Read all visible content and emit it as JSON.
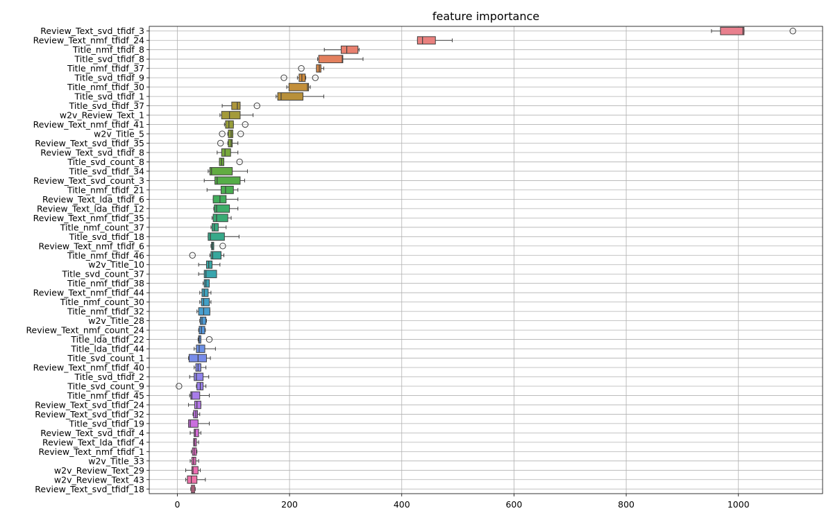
{
  "chart_data": {
    "type": "box",
    "title": "feature importance",
    "xlabel": "",
    "ylabel": "",
    "xlim": [
      -50,
      1150
    ],
    "xticks": [
      0,
      200,
      400,
      600,
      800,
      1000
    ],
    "xtick_labels": [
      "0",
      "200",
      "400",
      "600",
      "800",
      "1000"
    ],
    "grid": true,
    "orientation": "horizontal",
    "features": [
      {
        "name": "Review_Text_svd_tfidf_3",
        "min": 952,
        "q1": 968,
        "median": 1008,
        "q3": 1010,
        "max": 1010,
        "outliers": [
          1097
        ],
        "color": "#e8808e"
      },
      {
        "name": "Review_Text_nmf_tfidf_24",
        "min": 428,
        "q1": 428,
        "median": 437,
        "q3": 460,
        "max": 490,
        "outliers": [],
        "color": "#e8807e"
      },
      {
        "name": "Title_nmf_tfidf_8",
        "min": 262,
        "q1": 292,
        "median": 302,
        "q3": 322,
        "max": 324,
        "outliers": [],
        "color": "#e8806f"
      },
      {
        "name": "Title_svd_tfidf_8",
        "min": 250,
        "q1": 252,
        "median": 294,
        "q3": 295,
        "max": 331,
        "outliers": [],
        "color": "#e3805e"
      },
      {
        "name": "Title_nmf_tfidf_37",
        "min": 248,
        "q1": 248,
        "median": 253,
        "q3": 256,
        "max": 261,
        "outliers": [
          221
        ],
        "color": "#d98a4a"
      },
      {
        "name": "Title_svd_tfidf_9",
        "min": 214,
        "q1": 217,
        "median": 222,
        "q3": 228,
        "max": 229,
        "outliers": [
          190,
          246
        ],
        "color": "#cd8a3c"
      },
      {
        "name": "Title_nmf_tfidf_30",
        "min": 195,
        "q1": 199,
        "median": 232,
        "q3": 234,
        "max": 237,
        "outliers": [],
        "color": "#c38f3a"
      },
      {
        "name": "Title_svd_tfidf_1",
        "min": 176,
        "q1": 179,
        "median": 185,
        "q3": 224,
        "max": 261,
        "outliers": [],
        "color": "#b8903a"
      },
      {
        "name": "Title_svd_tfidf_37",
        "min": 80,
        "q1": 97,
        "median": 107,
        "q3": 112,
        "max": 112,
        "outliers": [
          142
        ],
        "color": "#ad963a"
      },
      {
        "name": "w2v_Review_Text_1",
        "min": 76,
        "q1": 79,
        "median": 93,
        "q3": 112,
        "max": 135,
        "outliers": [],
        "color": "#a39a3a"
      },
      {
        "name": "Review_Text_nmf_tfidf_41",
        "min": 84,
        "q1": 86,
        "median": 92,
        "q3": 100,
        "max": 100,
        "outliers": [
          121
        ],
        "color": "#989e3a"
      },
      {
        "name": "w2v_Title_5",
        "min": 90,
        "q1": 91,
        "median": 96,
        "q3": 99,
        "max": 99,
        "outliers": [
          80,
          113
        ],
        "color": "#8ea23a"
      },
      {
        "name": "Review_Text_svd_tfidf_35",
        "min": 90,
        "q1": 91,
        "median": 96,
        "q3": 98,
        "max": 108,
        "outliers": [
          77
        ],
        "color": "#83a63a"
      },
      {
        "name": "Review_Text_svd_tfidf_8",
        "min": 71,
        "q1": 79,
        "median": 85,
        "q3": 95,
        "max": 108,
        "outliers": [],
        "color": "#78a93c"
      },
      {
        "name": "Title_svd_count_8",
        "min": 75,
        "q1": 75,
        "median": 79,
        "q3": 83,
        "max": 83,
        "outliers": [
          111
        ],
        "color": "#6eab3e"
      },
      {
        "name": "Title_svd_tfidf_34",
        "min": 55,
        "q1": 58,
        "median": 61,
        "q3": 98,
        "max": 125,
        "outliers": [],
        "color": "#62ac42"
      },
      {
        "name": "Review_Text_svd_count_3",
        "min": 48,
        "q1": 67,
        "median": 71,
        "q3": 112,
        "max": 120,
        "outliers": [],
        "color": "#55ad48"
      },
      {
        "name": "Title_nmf_tfidf_21",
        "min": 53,
        "q1": 78,
        "median": 86,
        "q3": 100,
        "max": 108,
        "outliers": [],
        "color": "#4aae50"
      },
      {
        "name": "Review_Text_lda_tfidf_6",
        "min": 64,
        "q1": 64,
        "median": 76,
        "q3": 87,
        "max": 108,
        "outliers": [],
        "color": "#42ad5c"
      },
      {
        "name": "Review_Text_lda_tfidf_12",
        "min": 65,
        "q1": 66,
        "median": 70,
        "q3": 93,
        "max": 108,
        "outliers": [],
        "color": "#3dac68"
      },
      {
        "name": "Review_Text_nmf_tfidf_35",
        "min": 62,
        "q1": 64,
        "median": 70,
        "q3": 90,
        "max": 96,
        "outliers": [],
        "color": "#3aab74"
      },
      {
        "name": "Title_nmf_count_37",
        "min": 60,
        "q1": 62,
        "median": 66,
        "q3": 73,
        "max": 87,
        "outliers": [],
        "color": "#38aa80"
      },
      {
        "name": "Title_svd_tfidf_18",
        "min": 55,
        "q1": 55,
        "median": 59,
        "q3": 84,
        "max": 110,
        "outliers": [],
        "color": "#37a98a"
      },
      {
        "name": "Review_Text_nmf_tfidf_6",
        "min": 60,
        "q1": 61,
        "median": 63,
        "q3": 65,
        "max": 65,
        "outliers": [
          81
        ],
        "color": "#37a893"
      },
      {
        "name": "Title_nmf_tfidf_46",
        "min": 58,
        "q1": 60,
        "median": 63,
        "q3": 78,
        "max": 83,
        "outliers": [
          27
        ],
        "color": "#37a79c"
      },
      {
        "name": "w2v_Title_10",
        "min": 38,
        "q1": 52,
        "median": 56,
        "q3": 62,
        "max": 76,
        "outliers": [],
        "color": "#38a6a4"
      },
      {
        "name": "Title_svd_count_37",
        "min": 38,
        "q1": 48,
        "median": 51,
        "q3": 70,
        "max": 70,
        "outliers": [],
        "color": "#39a5ad"
      },
      {
        "name": "Title_nmf_tfidf_38",
        "min": 46,
        "q1": 48,
        "median": 51,
        "q3": 57,
        "max": 57,
        "outliers": [],
        "color": "#3ba3b5"
      },
      {
        "name": "Review_Text_nmf_tfidf_44",
        "min": 40,
        "q1": 44,
        "median": 48,
        "q3": 55,
        "max": 60,
        "outliers": [],
        "color": "#3ea2bd"
      },
      {
        "name": "Title_nmf_count_30",
        "min": 40,
        "q1": 43,
        "median": 47,
        "q3": 57,
        "max": 60,
        "outliers": [],
        "color": "#42a0c6"
      },
      {
        "name": "Title_nmf_tfidf_32",
        "min": 35,
        "q1": 38,
        "median": 47,
        "q3": 58,
        "max": 58,
        "outliers": [],
        "color": "#479ecf"
      },
      {
        "name": "w2v_Title_28",
        "min": 40,
        "q1": 41,
        "median": 44,
        "q3": 51,
        "max": 52,
        "outliers": [],
        "color": "#4e9bd6"
      },
      {
        "name": "Review_Text_nmf_count_24",
        "min": 38,
        "q1": 39,
        "median": 43,
        "q3": 49,
        "max": 50,
        "outliers": [],
        "color": "#5898dd"
      },
      {
        "name": "Title_lda_tfidf_22",
        "min": 37,
        "q1": 38,
        "median": 39,
        "q3": 42,
        "max": 42,
        "outliers": [
          57
        ],
        "color": "#6295e2"
      },
      {
        "name": "Title_lda_tfidf_44",
        "min": 30,
        "q1": 34,
        "median": 39,
        "q3": 49,
        "max": 68,
        "outliers": [],
        "color": "#6d91e6"
      },
      {
        "name": "Title_svd_count_1",
        "min": 20,
        "q1": 21,
        "median": 37,
        "q3": 52,
        "max": 59,
        "outliers": [],
        "color": "#788ce9"
      },
      {
        "name": "Review_Text_nmf_tfidf_40",
        "min": 30,
        "q1": 33,
        "median": 37,
        "q3": 42,
        "max": 51,
        "outliers": [],
        "color": "#8488eb"
      },
      {
        "name": "Title_svd_tfidf_2",
        "min": 22,
        "q1": 30,
        "median": 34,
        "q3": 46,
        "max": 56,
        "outliers": [],
        "color": "#9084ec"
      },
      {
        "name": "Title_svd_count_9",
        "min": 34,
        "q1": 35,
        "median": 41,
        "q3": 46,
        "max": 51,
        "outliers": [
          3
        ],
        "color": "#9c80ec"
      },
      {
        "name": "Title_nmf_tfidf_45",
        "min": 22,
        "q1": 24,
        "median": 26,
        "q3": 40,
        "max": 57,
        "outliers": [],
        "color": "#a87cea"
      },
      {
        "name": "Review_Text_svd_tfidf_24",
        "min": 20,
        "q1": 31,
        "median": 35,
        "q3": 42,
        "max": 42,
        "outliers": [],
        "color": "#b478e7"
      },
      {
        "name": "Review_Text_svd_tfidf_32",
        "min": 28,
        "q1": 29,
        "median": 33,
        "q3": 36,
        "max": 40,
        "outliers": [],
        "color": "#bf73e3"
      },
      {
        "name": "Title_svd_tfidf_19",
        "min": 20,
        "q1": 20,
        "median": 23,
        "q3": 37,
        "max": 57,
        "outliers": [],
        "color": "#ca6fdd"
      },
      {
        "name": "Review_Text_svd_tfidf_4",
        "min": 23,
        "q1": 30,
        "median": 32,
        "q3": 38,
        "max": 42,
        "outliers": [],
        "color": "#d46cd6"
      },
      {
        "name": "Review_Text_lda_tfidf_4",
        "min": 29,
        "q1": 29,
        "median": 31,
        "q3": 34,
        "max": 38,
        "outliers": [],
        "color": "#dd6ace"
      },
      {
        "name": "Review_Text_nmf_tfidf_1",
        "min": 25,
        "q1": 27,
        "median": 30,
        "q3": 34,
        "max": 35,
        "outliers": [],
        "color": "#e46ac5"
      },
      {
        "name": "w2v_Title_33",
        "min": 23,
        "q1": 26,
        "median": 29,
        "q3": 33,
        "max": 38,
        "outliers": [],
        "color": "#e96bbb"
      },
      {
        "name": "w2v_Review_Text_29",
        "min": 15,
        "q1": 26,
        "median": 28,
        "q3": 37,
        "max": 41,
        "outliers": [],
        "color": "#ec6db1"
      },
      {
        "name": "w2v_Review_Text_43",
        "min": 15,
        "q1": 18,
        "median": 25,
        "q3": 35,
        "max": 50,
        "outliers": [],
        "color": "#ed71a8"
      },
      {
        "name": "Review_Text_svd_tfidf_18",
        "min": 24,
        "q1": 25,
        "median": 28,
        "q3": 31,
        "max": 32,
        "outliers": [],
        "color": "#ee759e"
      }
    ]
  }
}
